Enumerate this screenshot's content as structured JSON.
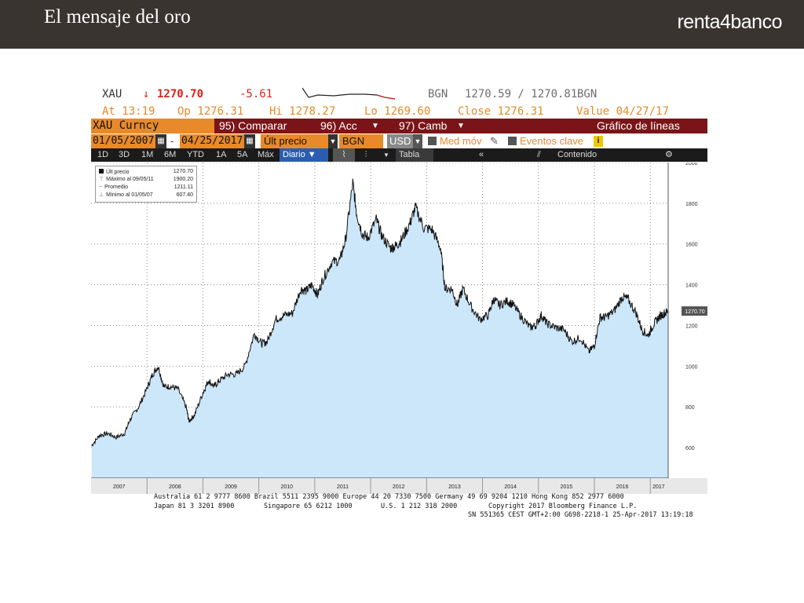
{
  "slide": {
    "title": "El mensaje del oro",
    "brand": "renta4banco"
  },
  "quote": {
    "ticker": "XAU",
    "arrow": "↓",
    "last": "1270.70",
    "change": "-5.61",
    "source1": "BGN",
    "bid_ask": "1270.59 / 1270.81",
    "source2": "BGN",
    "at": "At 13:19",
    "open": "Op 1276.31",
    "high": "Hi 1278.27",
    "low": "Lo 1269.60",
    "close": "Close 1276.31",
    "value": "Value 04/27/17"
  },
  "toolbar": {
    "security": "XAU Curncy",
    "compare": "95) Comparar",
    "actions": "96) Acc",
    "change": "97) Camb",
    "chart_type": "Gráfico de líneas",
    "start_date": "01/05/2007",
    "dash": "-",
    "end_date": "04/25/2017",
    "field": "Últ precio",
    "source": "BGN",
    "currency": "USD",
    "moving_avg": "Med móv",
    "key_events": "Eventos clave",
    "periods": [
      "1D",
      "3D",
      "1M",
      "6M",
      "YTD",
      "1A",
      "5A",
      "Máx"
    ],
    "frequency": "Diario ▼",
    "table": "Tabla",
    "content": "Contenido",
    "back": "«"
  },
  "legend": {
    "items": [
      {
        "label": "Últ precio",
        "value": "1270.70"
      },
      {
        "label": "Máximo al 09/05/11",
        "value": "1900.20"
      },
      {
        "label": "Promedio",
        "value": "1211.11"
      },
      {
        "label": "Mínimo al 01/05/07",
        "value": "607.40"
      }
    ]
  },
  "colors": {
    "header_bg": "#3a3431",
    "area_fill": "#cce6fa",
    "line": "#111111",
    "toolbar_red": "#7b1418",
    "toolbar_orange": "#e8892a"
  },
  "footer": {
    "line1": "Australia 61 2 9777 8600 Brazil 5511 2395 9000 Europe 44 20 7330 7500 Germany 49 69 9204 1210 Hong Kong 852 2977 6000",
    "line2a": "Japan 81 3 3201 8900",
    "line2b": "Singapore 65 6212 1000",
    "line2c": "U.S. 1 212 318 2000",
    "line2d": "Copyright 2017 Bloomberg Finance L.P.",
    "line3": "SN 551365 CEST GMT+2:00 G698-2218-1 25-Apr-2017 13:19:18"
  },
  "chart_data": {
    "type": "area",
    "ylim": [
      450,
      2000
    ],
    "y_ticks": [
      600,
      800,
      1000,
      1200,
      1400,
      1600,
      1800,
      2000
    ],
    "x_ticks": [
      "2007",
      "2008",
      "2009",
      "2010",
      "2011",
      "2012",
      "2013",
      "2014",
      "2015",
      "2016",
      "2017"
    ],
    "last_label": "1270.70",
    "grid": true,
    "series": [
      {
        "x": [
          2007.01,
          2007.15,
          2007.3,
          2007.45,
          2007.6,
          2007.7,
          2007.85,
          2008.0,
          2008.1,
          2008.2,
          2008.3,
          2008.42,
          2008.55,
          2008.7,
          2008.75,
          2008.85,
          2009.0,
          2009.1,
          2009.2,
          2009.3,
          2009.45,
          2009.6,
          2009.75,
          2009.92,
          2010.05,
          2010.15,
          2010.3,
          2010.45,
          2010.6,
          2010.75,
          2010.85,
          2010.95,
          2011.05,
          2011.15,
          2011.3,
          2011.45,
          2011.55,
          2011.68,
          2011.75,
          2011.85,
          2011.95,
          2012.1,
          2012.2,
          2012.35,
          2012.45,
          2012.55,
          2012.7,
          2012.8,
          2012.95,
          2013.1,
          2013.25,
          2013.33,
          2013.45,
          2013.55,
          2013.65,
          2013.8,
          2013.95,
          2014.1,
          2014.2,
          2014.3,
          2014.45,
          2014.55,
          2014.7,
          2014.85,
          2014.95,
          2015.05,
          2015.15,
          2015.3,
          2015.45,
          2015.6,
          2015.75,
          2015.9,
          2016.0,
          2016.1,
          2016.2,
          2016.35,
          2016.5,
          2016.6,
          2016.75,
          2016.85,
          2016.96,
          2017.05,
          2017.15,
          2017.25,
          2017.32
        ],
        "y": [
          610,
          660,
          670,
          650,
          670,
          740,
          800,
          890,
          960,
          1000,
          900,
          900,
          890,
          800,
          730,
          760,
          870,
          930,
          900,
          930,
          960,
          960,
          1000,
          1160,
          1110,
          1120,
          1230,
          1250,
          1260,
          1380,
          1370,
          1400,
          1350,
          1430,
          1510,
          1520,
          1620,
          1900,
          1750,
          1650,
          1630,
          1720,
          1640,
          1580,
          1590,
          1620,
          1700,
          1780,
          1680,
          1670,
          1580,
          1380,
          1380,
          1300,
          1380,
          1290,
          1230,
          1250,
          1330,
          1300,
          1320,
          1300,
          1240,
          1190,
          1200,
          1250,
          1210,
          1190,
          1180,
          1120,
          1140,
          1070,
          1100,
          1240,
          1240,
          1270,
          1340,
          1330,
          1260,
          1180,
          1150,
          1200,
          1240,
          1260,
          1270.7
        ]
      }
    ]
  }
}
